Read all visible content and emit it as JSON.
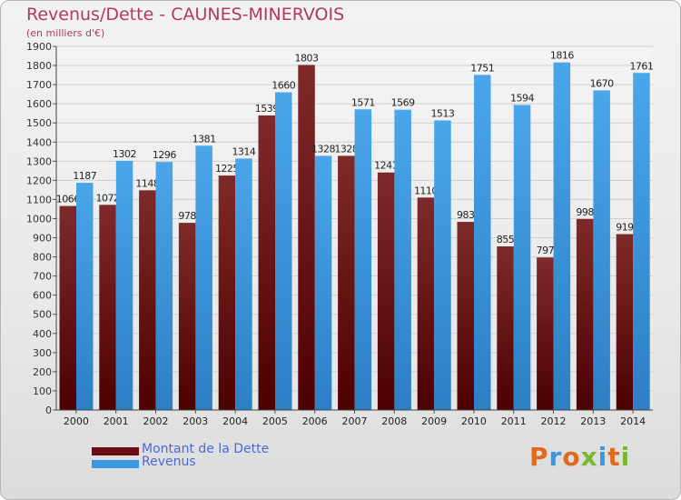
{
  "header": {
    "title": "Revenus/Dette - CAUNES-MINERVOIS",
    "subtitle": "(en milliers d'€)"
  },
  "legend": {
    "items": [
      {
        "label": "Montant de la Dette",
        "color": "#6b0d13"
      },
      {
        "label": "Revenus",
        "color": "#3a98e0"
      }
    ]
  },
  "logo": {
    "text": "Proxiti",
    "colors": [
      "#e26a1c",
      "#3a98e0",
      "#e26a1c",
      "#7cb82f",
      "#3a98e0",
      "#e26a1c",
      "#7cb82f"
    ]
  },
  "chart_data": {
    "type": "bar",
    "categories": [
      "2000",
      "2001",
      "2002",
      "2003",
      "2004",
      "2005",
      "2006",
      "2007",
      "2008",
      "2009",
      "2010",
      "2011",
      "2012",
      "2013",
      "2014"
    ],
    "series": [
      {
        "name": "Montant de la Dette",
        "values": [
          1066,
          1072,
          1148,
          978,
          1225,
          1539,
          1803,
          1328,
          1241,
          1110,
          983,
          855,
          797,
          998,
          919
        ],
        "labels": [
          "1066",
          "1072",
          "1148",
          "978",
          "1225",
          "1539",
          "1803",
          "1328",
          "1241",
          "1110",
          "983",
          "855",
          "797",
          "998",
          "919"
        ],
        "color": "#6b0d13"
      },
      {
        "name": "Revenus",
        "values": [
          1187,
          1302,
          1296,
          1381,
          1314,
          1660,
          1328,
          1571,
          1569,
          1513,
          1751,
          1594,
          1816,
          1670,
          1761
        ],
        "labels": [
          "1187",
          "1302",
          "1296",
          "1381",
          "1314",
          "1660",
          "1328",
          "1571",
          "1569",
          "1513",
          "1751",
          "1594",
          "1816",
          "1670",
          "1761"
        ],
        "color": "#3a98e0"
      }
    ],
    "ylim": [
      0,
      1900
    ],
    "ytick_step": 100,
    "grid": true,
    "legend_position": "bottom-left"
  }
}
